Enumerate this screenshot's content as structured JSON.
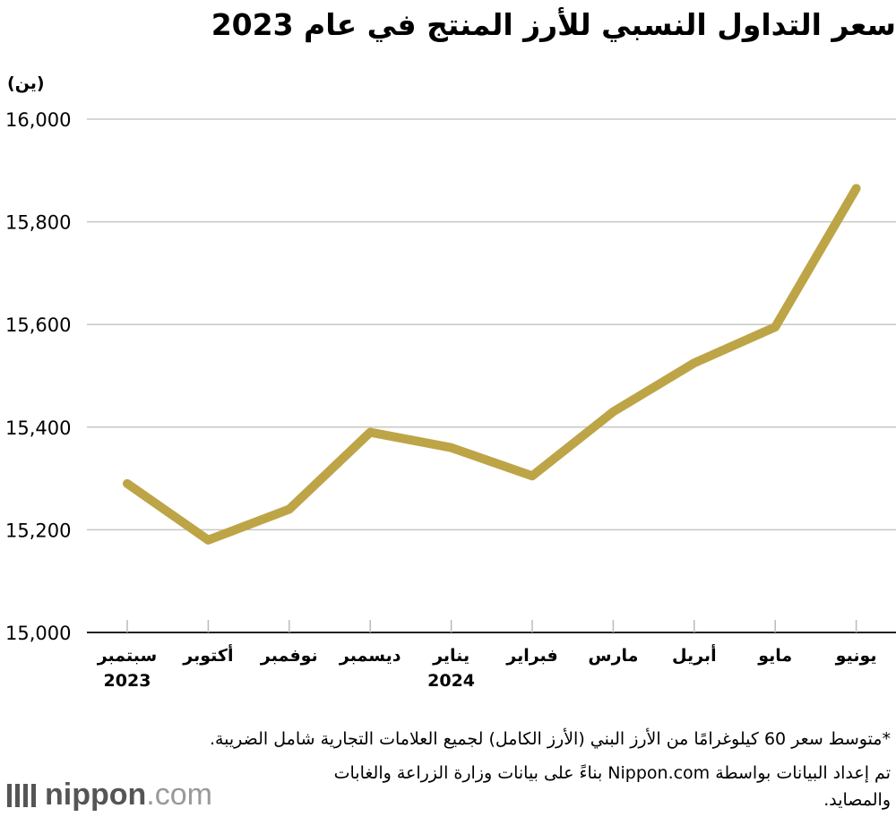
{
  "chart_data": {
    "type": "line",
    "title": "سعر التداول النسبي للأرز المنتج في عام 2023",
    "ylabel": "(ين)",
    "xlabel": "",
    "ylim": [
      15000,
      16000
    ],
    "yticks": [
      15000,
      15200,
      15400,
      15600,
      15800,
      16000
    ],
    "ytick_labels": [
      "15,000",
      "15,200",
      "15,400",
      "15,600",
      "15,800",
      "16,000"
    ],
    "categories": [
      {
        "month": "سبتمبر",
        "year": "2023"
      },
      {
        "month": "أكتوبر",
        "year": ""
      },
      {
        "month": "نوفمبر",
        "year": ""
      },
      {
        "month": "ديسمبر",
        "year": ""
      },
      {
        "month": "يناير",
        "year": "2024"
      },
      {
        "month": "فبراير",
        "year": ""
      },
      {
        "month": "مارس",
        "year": ""
      },
      {
        "month": "أبريل",
        "year": ""
      },
      {
        "month": "مايو",
        "year": ""
      },
      {
        "month": "يونيو",
        "year": ""
      }
    ],
    "series": [
      {
        "name": "سعر التداول النسبي",
        "values": [
          15290,
          15180,
          15240,
          15390,
          15360,
          15305,
          15430,
          15525,
          15595,
          15865
        ]
      }
    ],
    "grid": true,
    "line_color": "#bda547",
    "grid_color": "#c8c8c8"
  },
  "notes": {
    "line1": "*متوسط سعر 60 كيلوغرامًا من الأرز البني (الأرز الكامل) لجميع العلامات التجارية شامل الضريبة.",
    "line2": "تم إعداد البيانات بواسطة Nippon.com بناءً على بيانات وزارة الزراعة والغابات والمصايد."
  },
  "logo": {
    "brand": "nippon",
    "tld": ".com"
  }
}
